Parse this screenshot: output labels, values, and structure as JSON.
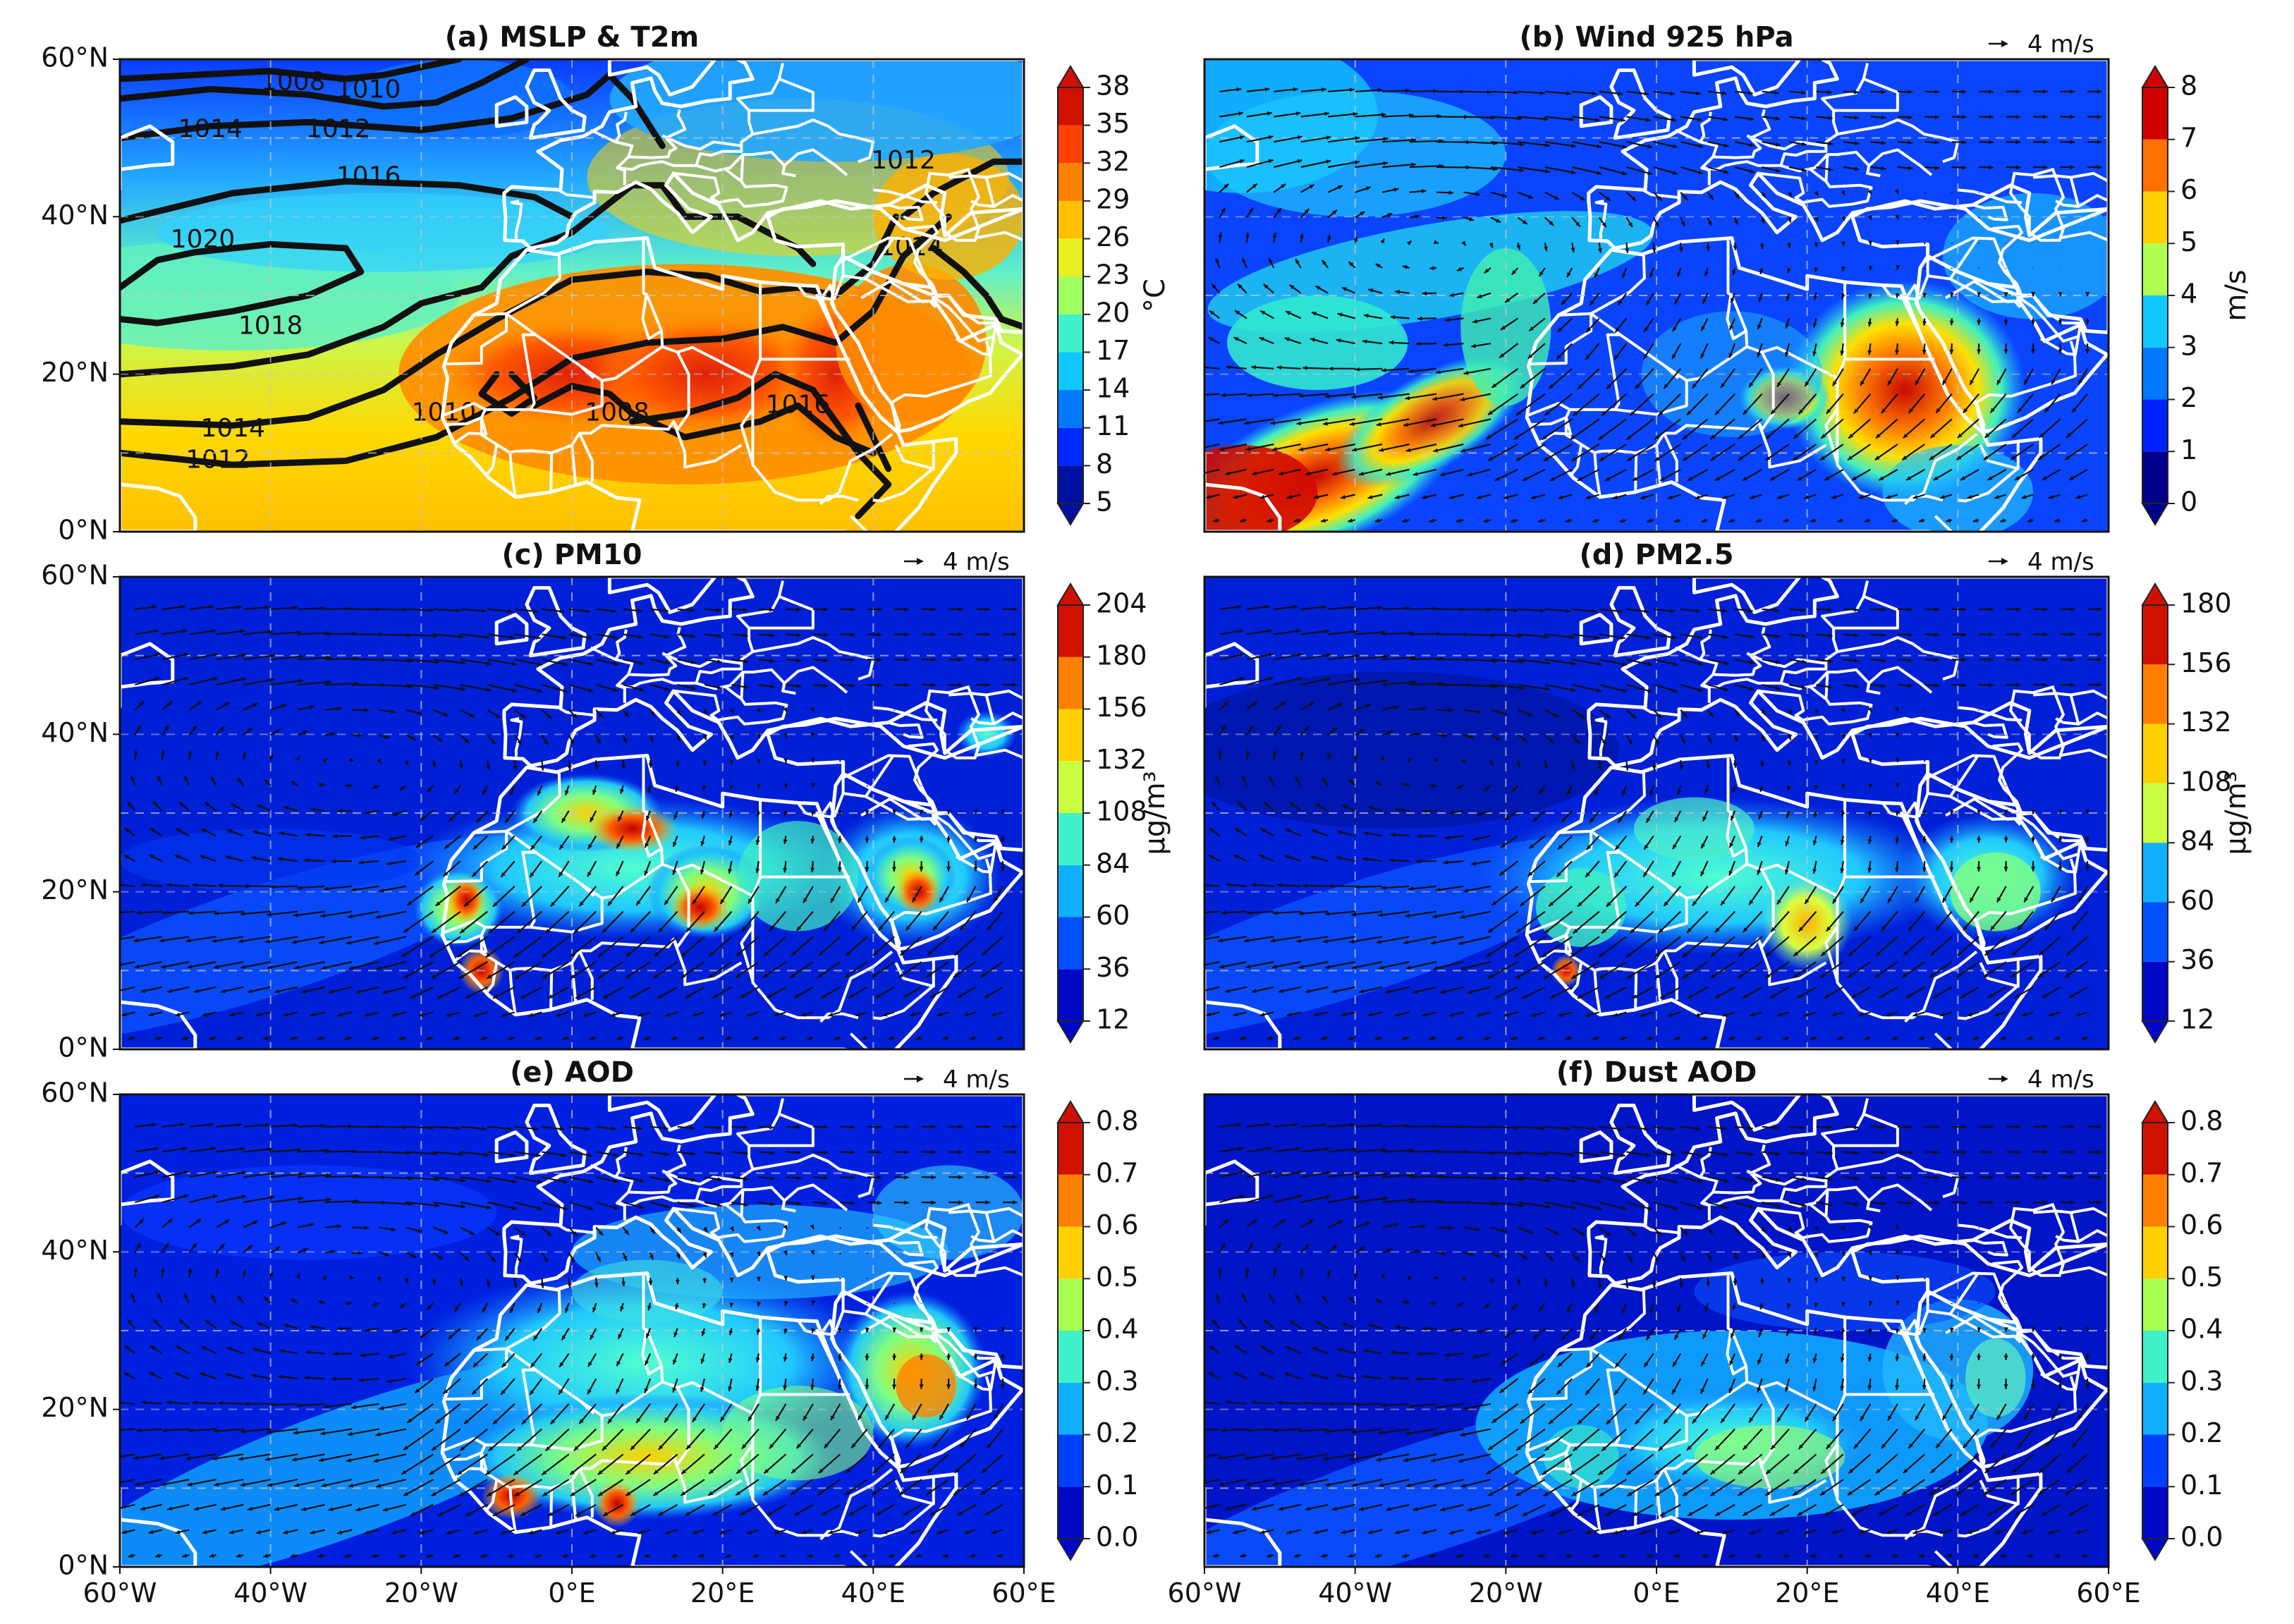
{
  "panels": [
    {
      "id": "a",
      "title": "(a) MSLP & T2m",
      "field": "temperature",
      "vector": "",
      "cbar_ticks": [
        "5",
        "8",
        "11",
        "14",
        "17",
        "20",
        "23",
        "26",
        "29",
        "32",
        "35",
        "38"
      ],
      "cbar_unit": "°C",
      "isobars": [
        "1008",
        "1010",
        "1012",
        "1014",
        "1016",
        "1018",
        "1020",
        "1014",
        "1012",
        "1010",
        "1008",
        "1016",
        "1014",
        "1012"
      ]
    },
    {
      "id": "b",
      "title": "(b) Wind 925 hPa",
      "field": "wind",
      "vector": "4 m/s",
      "cbar_ticks": [
        "0",
        "1",
        "2",
        "3",
        "4",
        "5",
        "6",
        "7",
        "8"
      ],
      "cbar_unit": "m/s"
    },
    {
      "id": "c",
      "title": "(c) PM10",
      "field": "pm10",
      "vector": "4 m/s",
      "cbar_ticks": [
        "12",
        "36",
        "60",
        "84",
        "108",
        "132",
        "156",
        "180",
        "204"
      ],
      "cbar_unit": "µg/m³"
    },
    {
      "id": "d",
      "title": "(d) PM2.5",
      "field": "pm25",
      "vector": "4 m/s",
      "cbar_ticks": [
        "12",
        "36",
        "60",
        "84",
        "108",
        "132",
        "156",
        "180"
      ],
      "cbar_unit": "µg/m³"
    },
    {
      "id": "e",
      "title": "(e) AOD",
      "field": "aod",
      "vector": "4 m/s",
      "cbar_ticks": [
        "0.0",
        "0.1",
        "0.2",
        "0.3",
        "0.4",
        "0.5",
        "0.6",
        "0.7",
        "0.8"
      ],
      "cbar_unit": ""
    },
    {
      "id": "f",
      "title": "(f) Dust AOD",
      "field": "dustaod",
      "vector": "4 m/s",
      "cbar_ticks": [
        "0.0",
        "0.1",
        "0.2",
        "0.3",
        "0.4",
        "0.5",
        "0.6",
        "0.7",
        "0.8"
      ],
      "cbar_unit": ""
    }
  ],
  "lat_labels": [
    "0°N",
    "20°N",
    "40°N",
    "60°N"
  ],
  "lon_labels": [
    "60°W",
    "40°W",
    "20°W",
    "0°E",
    "20°E",
    "40°E",
    "60°E"
  ],
  "extent": {
    "lon": [
      -60,
      60
    ],
    "lat": [
      0,
      60
    ]
  },
  "colors": {
    "coast": "#ffffff",
    "isobar": "#111111",
    "arrow": "#111111"
  }
}
